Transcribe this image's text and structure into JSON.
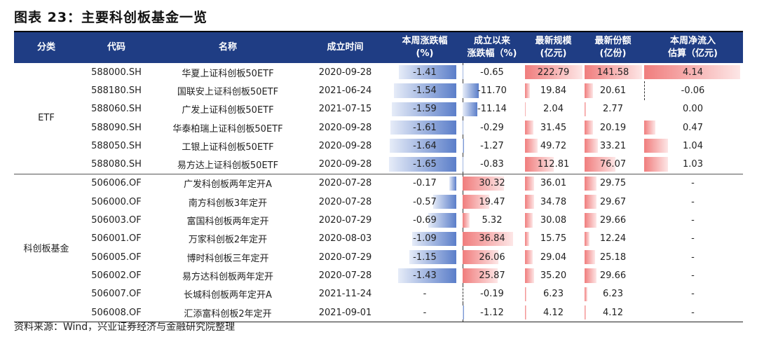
{
  "title": "图表 23：主要科创板基金一览",
  "headers": [
    "分类",
    "代码",
    "名称",
    "成立时间",
    [
      "本周涨跌幅",
      "(%)"
    ],
    [
      "成立以来",
      "涨跌幅（%)"
    ],
    [
      "最新规模",
      "(亿元)"
    ],
    [
      "最新份额",
      "(亿份)"
    ],
    [
      "本周净流入",
      "估算（亿元)"
    ]
  ],
  "groups": [
    {
      "category": "ETF",
      "rows": [
        {
          "code": "588000.SH",
          "name": "华夏上证科创板50ETF",
          "date": "2020-09-28",
          "week_change": "-1.41",
          "since_inception": "-0.65",
          "scale": "222.79",
          "shares": "141.58",
          "net_inflow": "4.14"
        },
        {
          "code": "588180.SH",
          "name": "国联安上证科创板50ETF",
          "date": "2021-06-24",
          "week_change": "-1.54",
          "since_inception": "-11.70",
          "scale": "19.84",
          "shares": "20.61",
          "net_inflow": "-0.06"
        },
        {
          "code": "588060.SH",
          "name": "广发上证科创板50ETF",
          "date": "2021-07-15",
          "week_change": "-1.59",
          "since_inception": "-11.14",
          "scale": "2.04",
          "shares": "2.77",
          "net_inflow": "0.00"
        },
        {
          "code": "588090.SH",
          "name": "华泰柏瑞上证科创板50ETF",
          "date": "2020-09-28",
          "week_change": "-1.61",
          "since_inception": "-0.29",
          "scale": "31.45",
          "shares": "20.19",
          "net_inflow": "0.47"
        },
        {
          "code": "588050.SH",
          "name": "工银上证科创板50ETF",
          "date": "2020-09-28",
          "week_change": "-1.64",
          "since_inception": "-1.27",
          "scale": "49.72",
          "shares": "33.21",
          "net_inflow": "1.04"
        },
        {
          "code": "588080.SH",
          "name": "易方达上证科创板50ETF",
          "date": "2020-09-28",
          "week_change": "-1.65",
          "since_inception": "-0.83",
          "scale": "112.81",
          "shares": "76.07",
          "net_inflow": "1.03"
        }
      ]
    },
    {
      "category": "科创板基金",
      "rows": [
        {
          "code": "506006.OF",
          "name": "广发科创板两年定开A",
          "date": "2020-07-28",
          "week_change": "-0.17",
          "since_inception": "30.32",
          "scale": "36.01",
          "shares": "29.75",
          "net_inflow": "-"
        },
        {
          "code": "506000.OF",
          "name": "南方科创板3年定开",
          "date": "2020-07-28",
          "week_change": "-0.57",
          "since_inception": "19.47",
          "scale": "34.78",
          "shares": "29.67",
          "net_inflow": "-"
        },
        {
          "code": "506003.OF",
          "name": "富国科创板两年定开",
          "date": "2020-07-29",
          "week_change": "-0.69",
          "since_inception": "5.32",
          "scale": "30.08",
          "shares": "29.66",
          "net_inflow": "-"
        },
        {
          "code": "506001.OF",
          "name": "万家科创板2年定开",
          "date": "2020-08-03",
          "week_change": "-1.09",
          "since_inception": "36.84",
          "scale": "15.75",
          "shares": "12.24",
          "net_inflow": "-"
        },
        {
          "code": "506005.OF",
          "name": "博时科创板三年定开",
          "date": "2020-07-29",
          "week_change": "-1.15",
          "since_inception": "26.06",
          "scale": "29.04",
          "shares": "25.18",
          "net_inflow": "-"
        },
        {
          "code": "506002.OF",
          "name": "易方达科创板两年定开",
          "date": "2020-07-28",
          "week_change": "-1.43",
          "since_inception": "25.87",
          "scale": "35.20",
          "shares": "29.66",
          "net_inflow": "-"
        },
        {
          "code": "506007.OF",
          "name": "长城科创板两年定开A",
          "date": "2021-11-24",
          "week_change": "-",
          "since_inception": "-0.19",
          "scale": "6.23",
          "shares": "6.23",
          "net_inflow": "-"
        },
        {
          "code": "506008.OF",
          "name": "汇添富科创板2年定开",
          "date": "2021-09-01",
          "week_change": "-",
          "since_inception": "-1.12",
          "scale": "4.12",
          "shares": "4.12",
          "net_inflow": "-"
        }
      ]
    }
  ],
  "source": "资料来源：Wind，兴业证券经济与金融研究院整理"
}
